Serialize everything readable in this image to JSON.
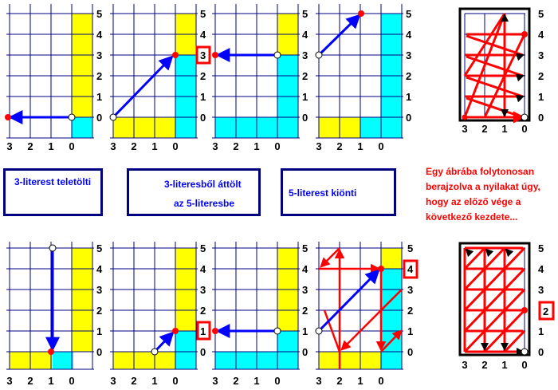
{
  "top_ticks_y": [
    "0",
    "1",
    "2",
    "3",
    "4",
    "5"
  ],
  "ticks_x": [
    "3",
    "2",
    "1",
    "0"
  ],
  "bottom_extra_y": [
    "5",
    "4",
    "3",
    "2",
    "1",
    "0"
  ],
  "callout_top": "3",
  "callout_bottom_2": "1",
  "callout_bottom_4": "4",
  "callout_right_bottom": "2",
  "legend": {
    "fill_label": "3-literest teletölti",
    "transfer_label_1": "3-literesből áttölt",
    "transfer_label_2": "az 5-literesbe",
    "empty_label": "5-literest kiönti"
  },
  "note": {
    "line1": "Egy ábrába folytonosan",
    "line2": "berajzolva a nyilakat úgy,",
    "line3": "hogy az előző vége a",
    "line4": "következő kezdete..."
  },
  "colors": {
    "grid": "#000080",
    "yellow": "#ffff00",
    "cyan": "#00ffff",
    "arrow_blue": "#0000ff",
    "arrow_red": "#ff0000",
    "point_red": "#ff0000"
  }
}
